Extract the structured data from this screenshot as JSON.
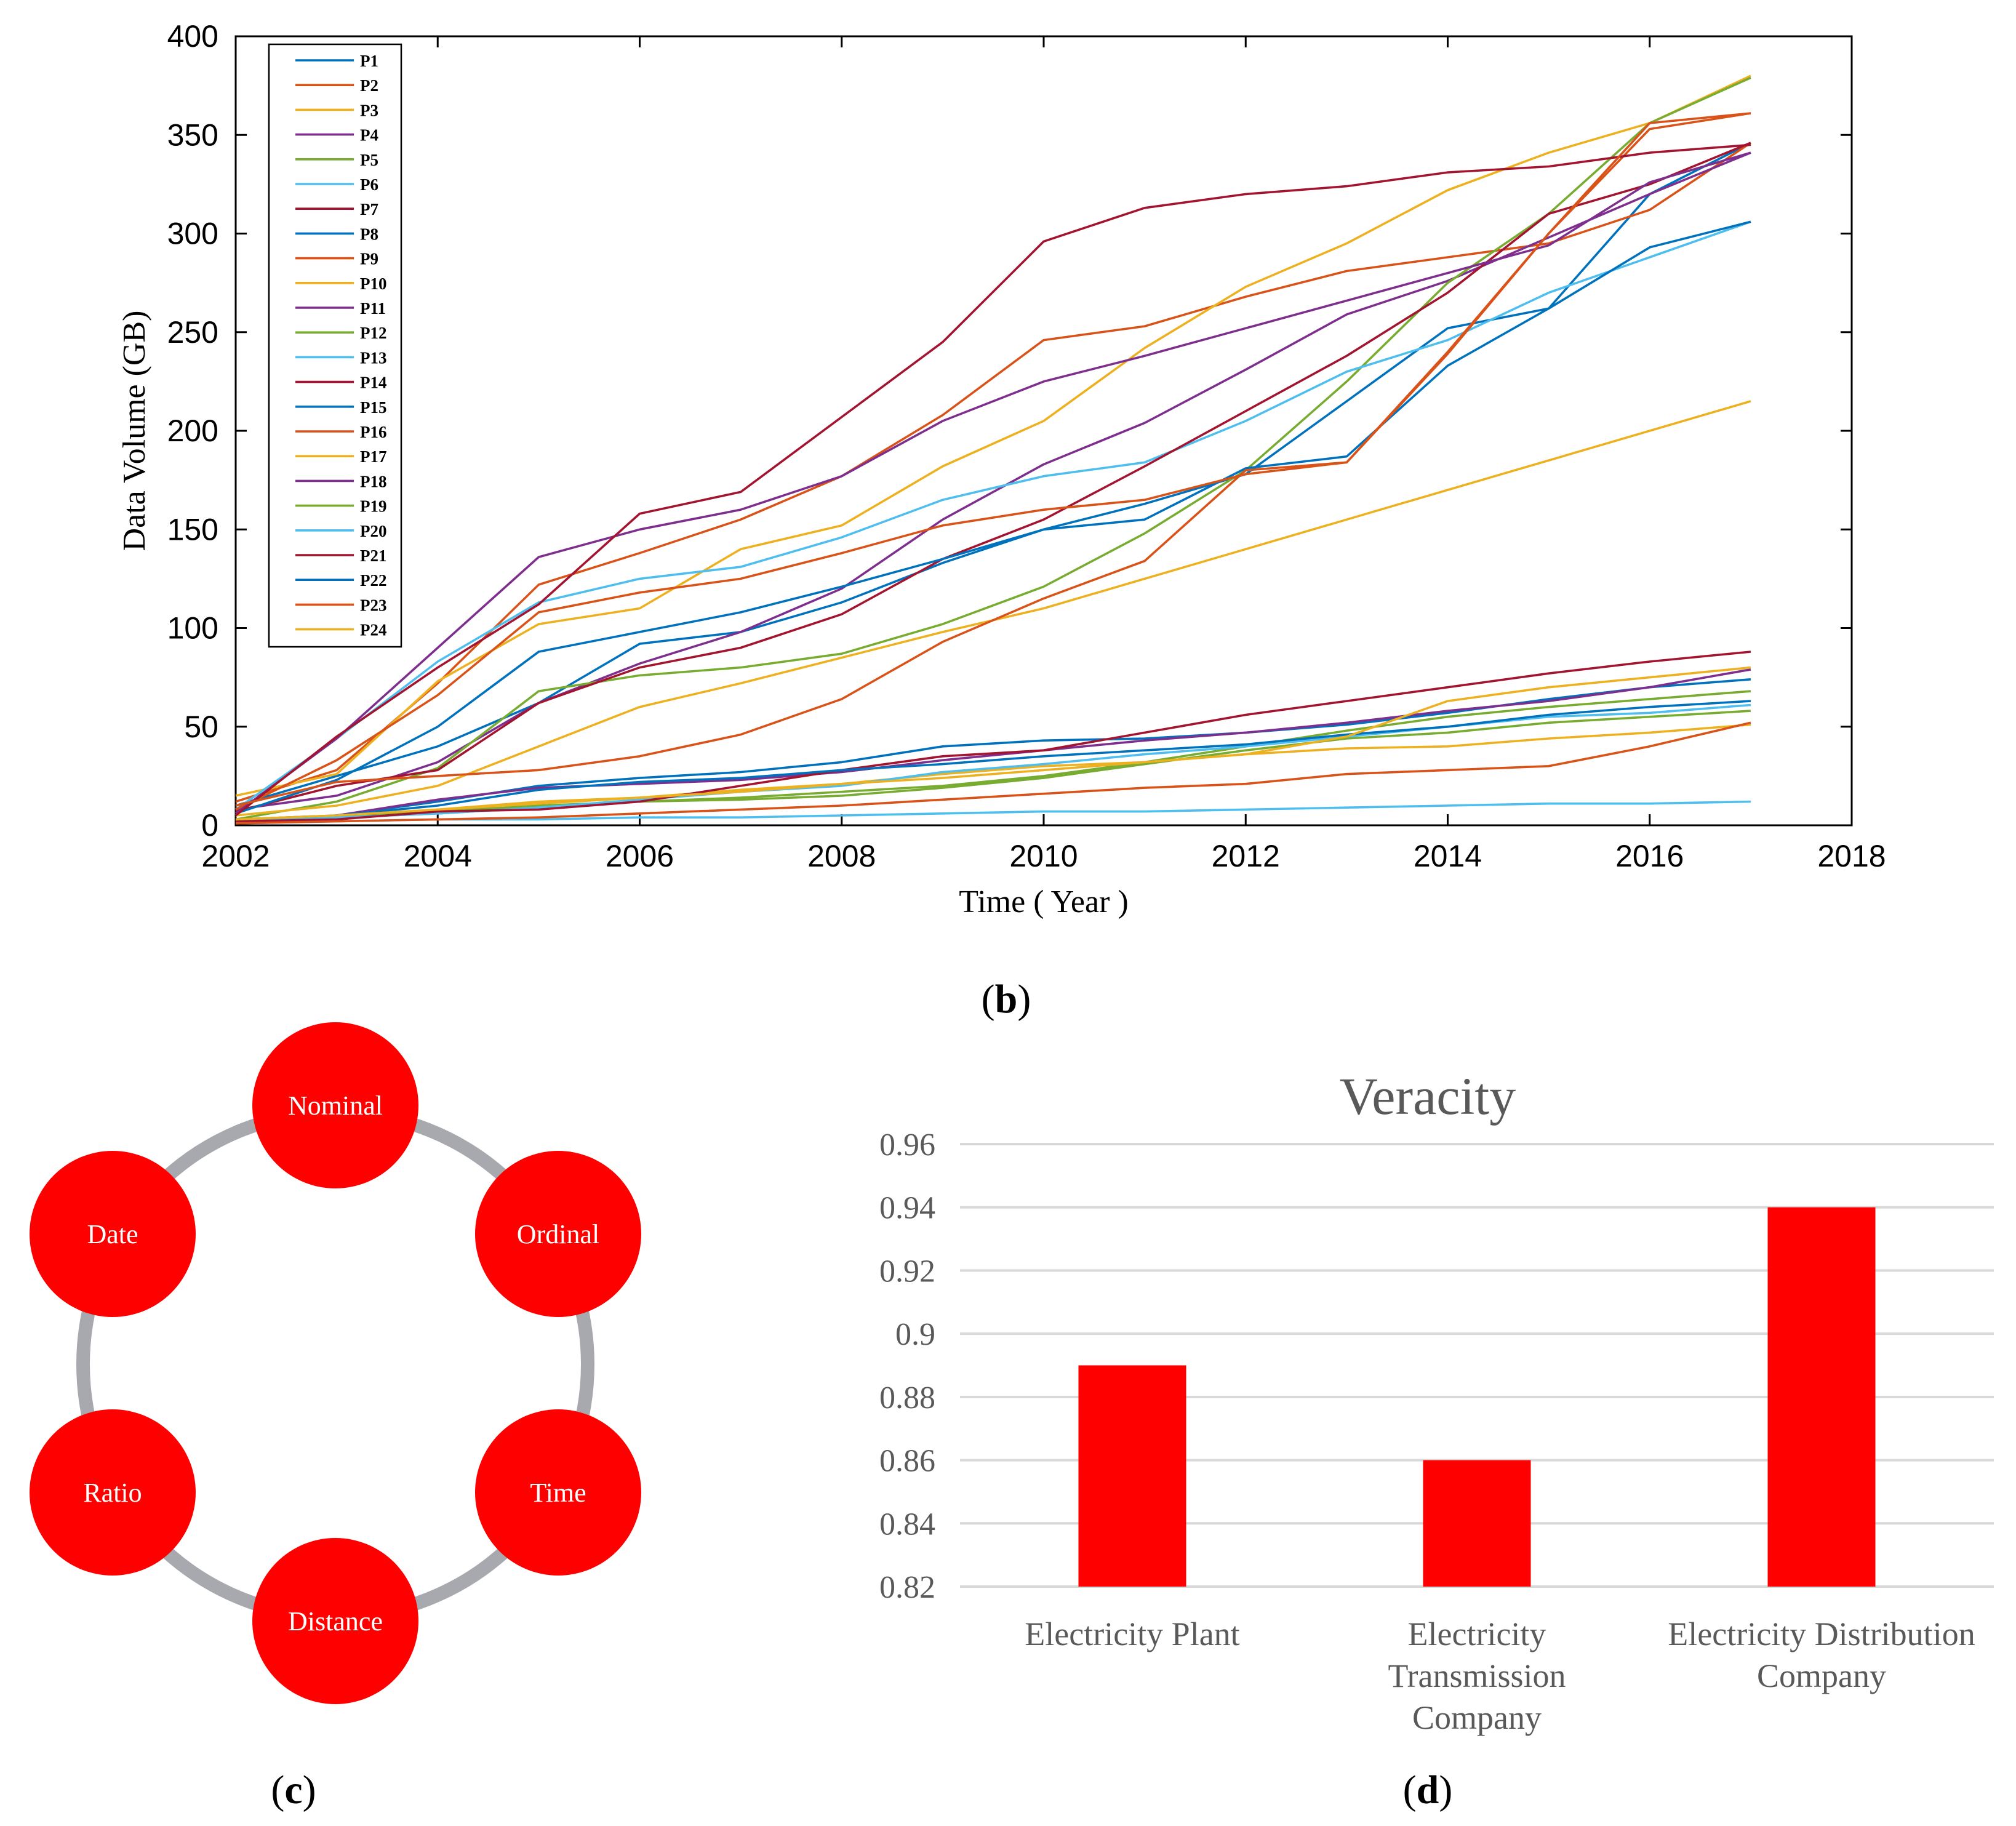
{
  "panels": {
    "b": {
      "label": "b",
      "chart_data": {
        "type": "line",
        "xlabel": "Time ( Year )",
        "ylabel": "Data Volume (GB)",
        "xlim": [
          2002,
          2018
        ],
        "ylim": [
          0,
          400
        ],
        "xticks": [
          2002,
          2004,
          2006,
          2008,
          2010,
          2012,
          2014,
          2016,
          2018
        ],
        "yticks": [
          0,
          50,
          100,
          150,
          200,
          250,
          300,
          350,
          400
        ],
        "grid": false,
        "legend_position": "top-left",
        "x": [
          2002,
          2003,
          2004,
          2005,
          2006,
          2007,
          2008,
          2009,
          2010,
          2011,
          2012,
          2013,
          2014,
          2015,
          2016,
          2017
        ],
        "series": [
          {
            "name": "P1",
            "color": "#0072BD",
            "values": [
              10,
              25,
              40,
              62,
              92,
              98,
              113,
              133,
              150,
              163,
              178,
              215,
              252,
              262,
              320,
              346
            ]
          },
          {
            "name": "P2",
            "color": "#D95319",
            "values": [
              12,
              28,
              72,
              122,
              138,
              155,
              177,
              208,
              246,
              253,
              268,
              281,
              288,
              295,
              312,
              346
            ]
          },
          {
            "name": "P3",
            "color": "#EDB120",
            "values": [
              15,
              26,
              73,
              102,
              110,
              140,
              152,
              182,
              205,
              242,
              273,
              295,
              322,
              341,
              356,
              380
            ]
          },
          {
            "name": "P4",
            "color": "#7E2F8E",
            "values": [
              8,
              15,
              32,
              62,
              82,
              98,
              120,
              155,
              183,
              204,
              231,
              259,
              276,
              298,
              320,
              341
            ]
          },
          {
            "name": "P5",
            "color": "#77AC30",
            "values": [
              3,
              12,
              29,
              68,
              76,
              80,
              87,
              102,
              121,
              148,
              180,
              225,
              275,
              310,
              356,
              379
            ]
          },
          {
            "name": "P6",
            "color": "#4DBEEE",
            "values": [
              8,
              44,
              83,
              113,
              125,
              131,
              146,
              165,
              177,
              184,
              205,
              230,
              246,
              270,
              288,
              306
            ]
          },
          {
            "name": "P7",
            "color": "#A2142F",
            "values": [
              7,
              20,
              28,
              62,
              80,
              90,
              107,
              135,
              155,
              182,
              210,
              238,
              270,
              310,
              325,
              346
            ]
          },
          {
            "name": "P8",
            "color": "#0072BD",
            "values": [
              6,
              23,
              50,
              88,
              98,
              108,
              121,
              135,
              150,
              155,
              181,
              187,
              233,
              262,
              293,
              306
            ]
          },
          {
            "name": "P9",
            "color": "#D95319",
            "values": [
              8,
              33,
              66,
              108,
              118,
              125,
              138,
              152,
              160,
              165,
              178,
              184,
              239,
              300,
              353,
              361
            ]
          },
          {
            "name": "P10",
            "color": "#EDB120",
            "values": [
              5,
              10,
              20,
              40,
              60,
              72,
              85,
              98,
              110,
              125,
              140,
              155,
              170,
              185,
              200,
              215
            ]
          },
          {
            "name": "P11",
            "color": "#7E2F8E",
            "values": [
              6,
              44,
              90,
              136,
              150,
              160,
              177,
              205,
              225,
              238,
              252,
              266,
              280,
              294,
              326,
              341
            ]
          },
          {
            "name": "P12",
            "color": "#77AC30",
            "values": [
              2,
              4,
              6,
              9,
              12,
              14,
              17,
              20,
              25,
              32,
              40,
              48,
              55,
              60,
              64,
              68
            ]
          },
          {
            "name": "P13",
            "color": "#4DBEEE",
            "values": [
              1,
              2,
              3,
              3,
              4,
              4,
              5,
              6,
              7,
              7,
              8,
              9,
              10,
              11,
              11,
              12
            ]
          },
          {
            "name": "P14",
            "color": "#A2142F",
            "values": [
              5,
              45,
              80,
              112,
              158,
              169,
              207,
              245,
              296,
              313,
              320,
              324,
              331,
              334,
              341,
              345
            ]
          },
          {
            "name": "P15",
            "color": "#0072BD",
            "values": [
              2,
              5,
              12,
              20,
              24,
              27,
              32,
              40,
              43,
              44,
              47,
              51,
              57,
              64,
              70,
              74
            ]
          },
          {
            "name": "P16",
            "color": "#D95319",
            "values": [
              10,
              22,
              25,
              28,
              35,
              46,
              64,
              93,
              115,
              134,
              180,
              184,
              240,
              300,
              356,
              361
            ]
          },
          {
            "name": "P17",
            "color": "#EDB120",
            "values": [
              2,
              4,
              8,
              12,
              14,
              18,
              21,
              26,
              30,
              32,
              36,
              39,
              40,
              44,
              47,
              51
            ]
          },
          {
            "name": "P18",
            "color": "#7E2F8E",
            "values": [
              2,
              5,
              13,
              19,
              21,
              23,
              27,
              33,
              38,
              43,
              47,
              52,
              58,
              63,
              70,
              79
            ]
          },
          {
            "name": "P19",
            "color": "#77AC30",
            "values": [
              2,
              4,
              7,
              10,
              12,
              13,
              15,
              19,
              24,
              31,
              38,
              44,
              47,
              52,
              55,
              58
            ]
          },
          {
            "name": "P20",
            "color": "#4DBEEE",
            "values": [
              3,
              4,
              6,
              9,
              13,
              17,
              20,
              27,
              31,
              36,
              40,
              45,
              50,
              55,
              57,
              61
            ]
          },
          {
            "name": "P21",
            "color": "#A2142F",
            "values": [
              2,
              3,
              7,
              8,
              12,
              20,
              28,
              35,
              38,
              47,
              56,
              63,
              70,
              77,
              83,
              88
            ]
          },
          {
            "name": "P22",
            "color": "#0072BD",
            "values": [
              3,
              5,
              10,
              18,
              22,
              24,
              28,
              31,
              35,
              38,
              41,
              46,
              50,
              56,
              60,
              63
            ]
          },
          {
            "name": "P23",
            "color": "#D95319",
            "values": [
              1,
              2,
              3,
              4,
              6,
              8,
              10,
              13,
              16,
              19,
              21,
              26,
              28,
              30,
              40,
              52
            ]
          },
          {
            "name": "P24",
            "color": "#EDB120",
            "values": [
              3,
              5,
              8,
              11,
              14,
              17,
              21,
              24,
              28,
              32,
              36,
              45,
              63,
              70,
              75,
              80
            ]
          }
        ]
      }
    },
    "c": {
      "label": "c",
      "nodes": [
        "Nominal",
        "Ordinal",
        "Time",
        "Distance",
        "Ratio",
        "Date"
      ],
      "ring_color": "#A8A9AE",
      "node_color": "#FF0000"
    },
    "d": {
      "label": "d",
      "chart_data": {
        "type": "bar",
        "title": "Veracity",
        "categories": [
          [
            "Electricity Plant"
          ],
          [
            "Electricity",
            "Transmission",
            "Company"
          ],
          [
            "Electricity Distribution",
            "Company"
          ]
        ],
        "values": [
          0.89,
          0.86,
          0.94
        ],
        "ylim": [
          0.82,
          0.96
        ],
        "yticks": [
          "0.82",
          "0.84",
          "0.86",
          "0.88",
          "0.9",
          "0.92",
          "0.94",
          "0.96"
        ],
        "grid": true,
        "bar_color": "#FF0000"
      }
    }
  }
}
